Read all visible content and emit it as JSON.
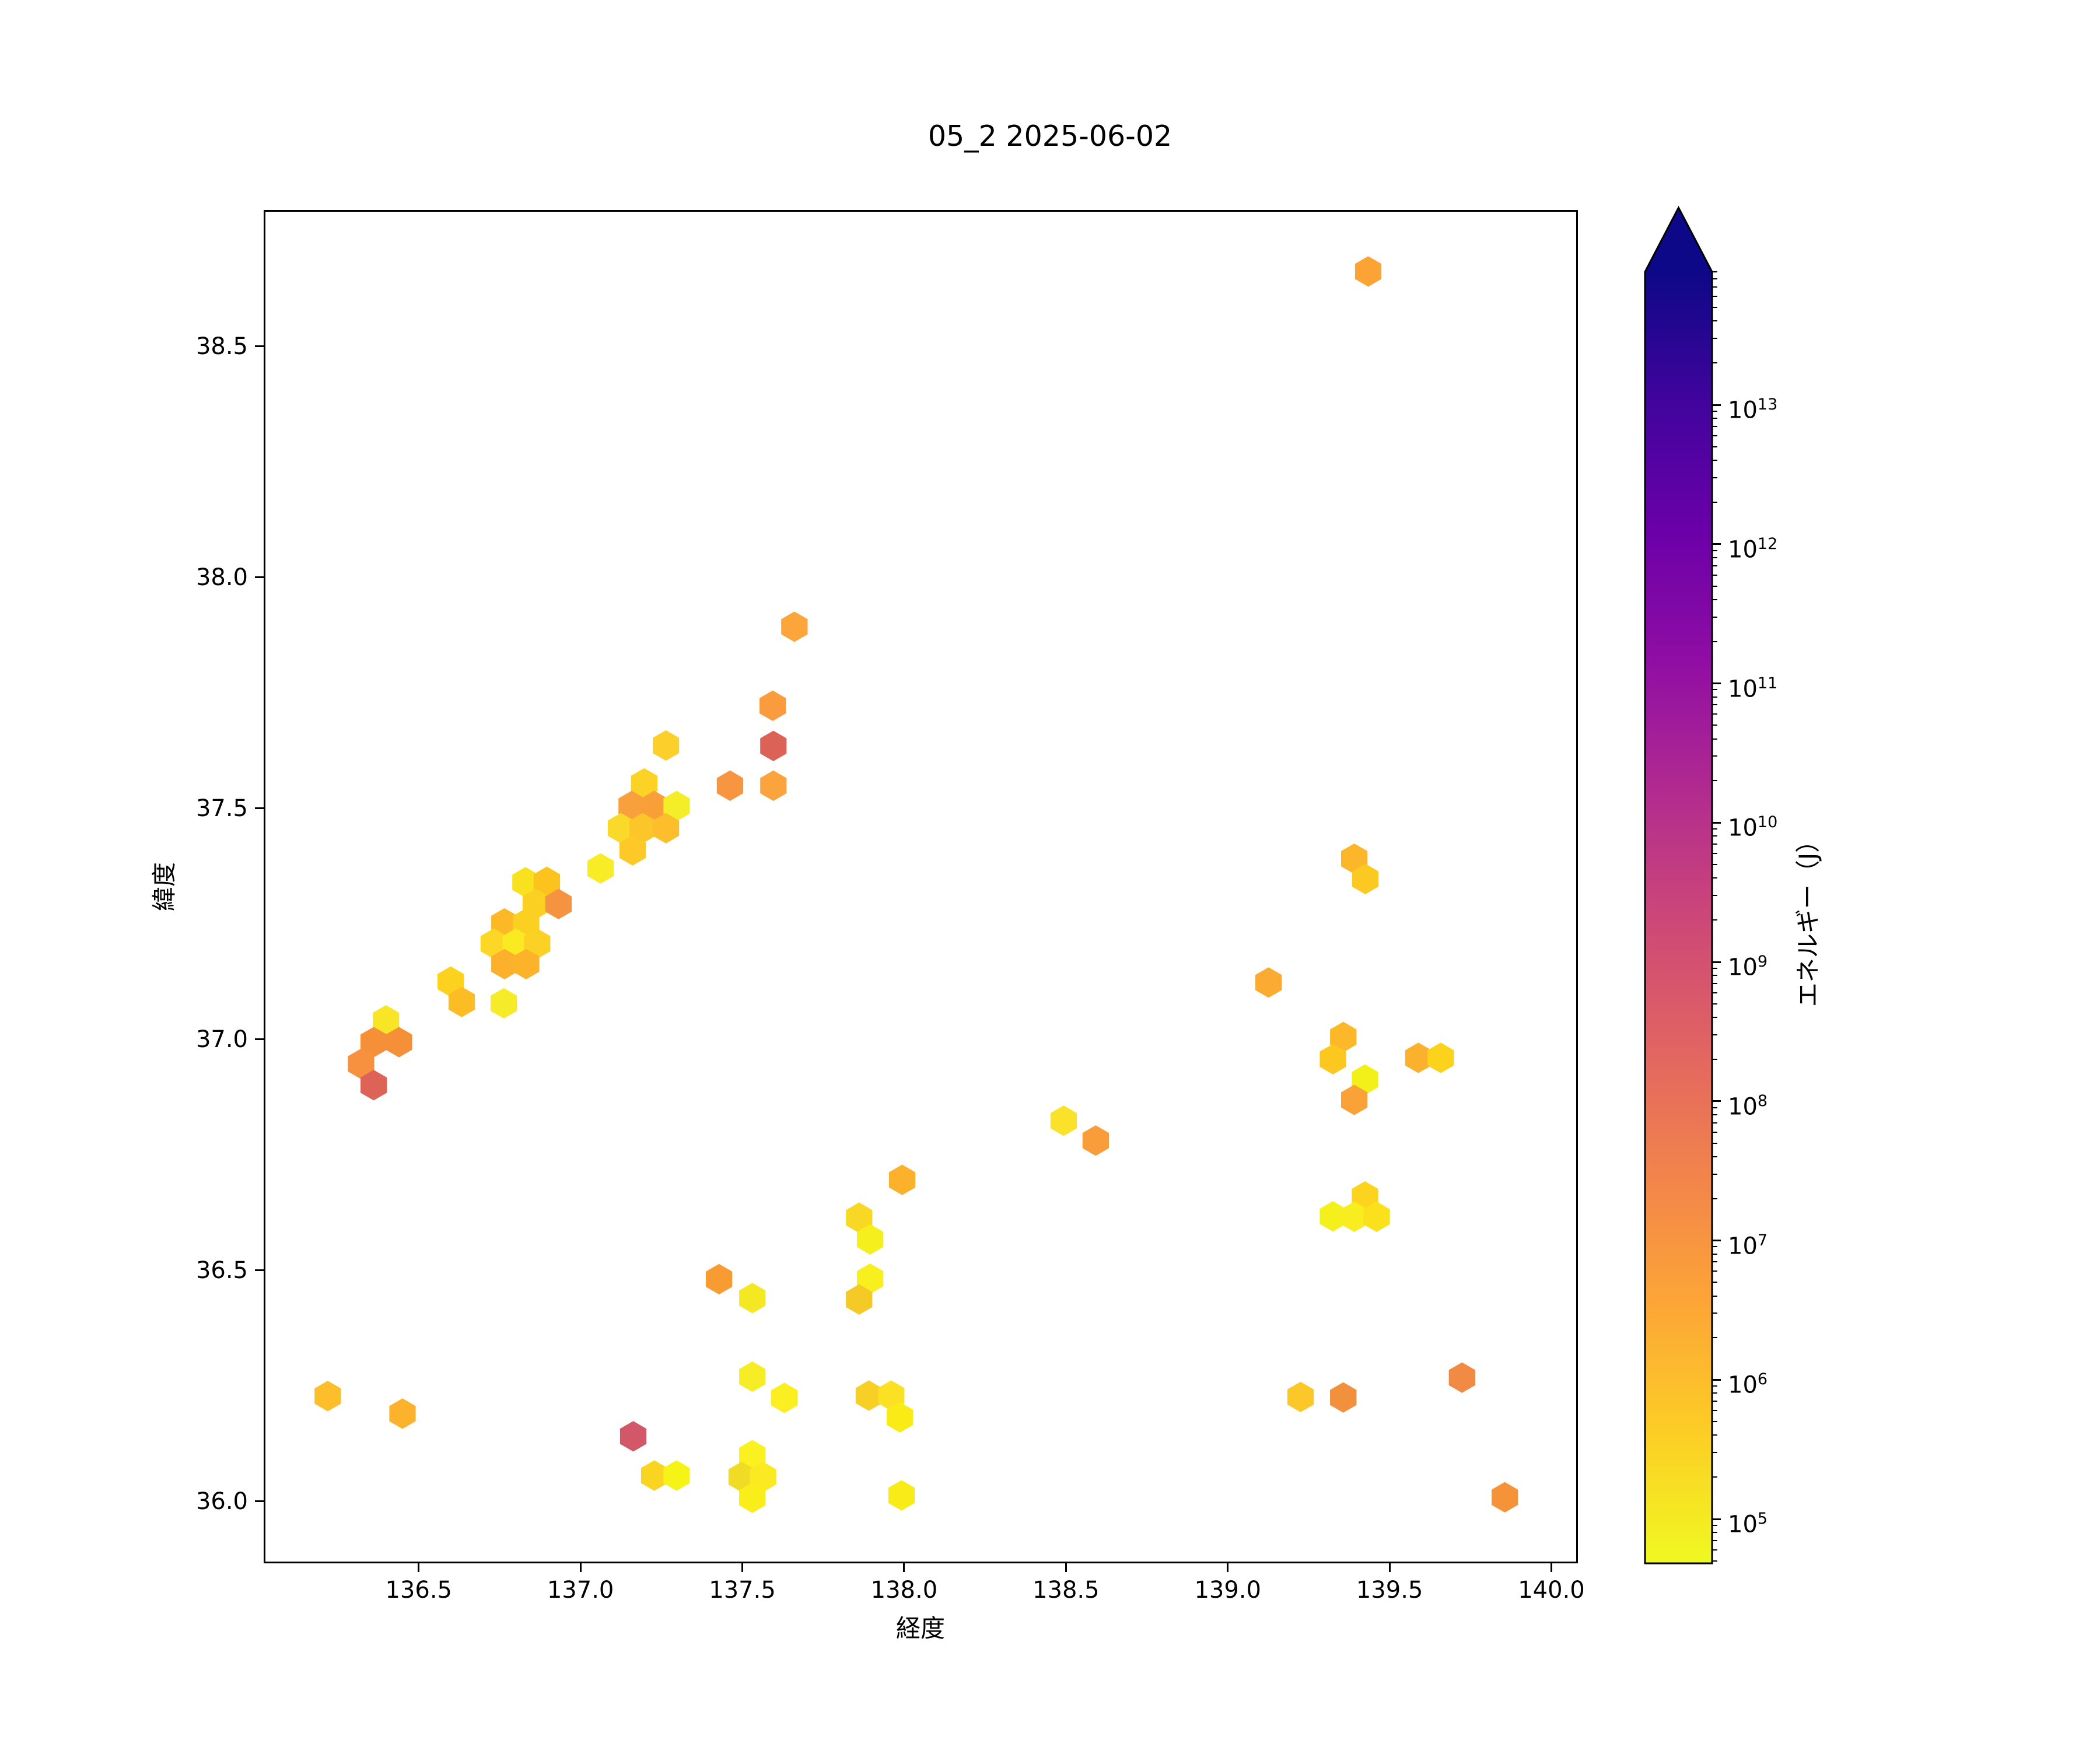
{
  "title": "05_2 2025-06-02",
  "plot": {
    "xlabel": "経度",
    "ylabel": "緯度",
    "x_tick_values": [
      136.5,
      137.0,
      137.5,
      138.0,
      138.5,
      139.0,
      139.5,
      140.0
    ],
    "x_tick_labels": [
      "136.5",
      "137.0",
      "137.5",
      "138.0",
      "138.5",
      "139.0",
      "139.5",
      "140.0"
    ],
    "y_tick_values": [
      38.5,
      38.0,
      37.5,
      37.0,
      36.5,
      36.0
    ],
    "y_tick_labels": [
      "38.5",
      "38.0",
      "37.5",
      "37.0",
      "36.5",
      "36.0"
    ]
  },
  "colorbar": {
    "label": "エネルギー（J）",
    "scale": "log",
    "extend": "max",
    "tick_exponents": [
      5,
      6,
      7,
      8,
      9,
      10,
      11,
      12,
      13
    ],
    "range_log10": [
      4.68,
      13.955
    ],
    "arrow_color": "#0d0887",
    "cmap_low_to_high": [
      "#f0f921",
      "#fcce25",
      "#fca636",
      "#f2844b",
      "#e16462",
      "#cc4778",
      "#b12a90",
      "#8f0da4",
      "#6a00a8",
      "#41049d",
      "#0d0887"
    ]
  },
  "chart_data": {
    "type": "hexbin",
    "title": "05_2 2025-06-02",
    "xlabel": "経度",
    "ylabel": "緯度",
    "colorbar_label": "エネルギー（J）",
    "xlim": [
      136.021,
      140.082
    ],
    "ylim": [
      35.866,
      38.795
    ],
    "grid": false,
    "hex_width_deg": 0.078,
    "points": [
      {
        "x": 139.434,
        "y": 38.662,
        "c": "#fba335"
      },
      {
        "x": 137.661,
        "y": 37.893,
        "c": "#fca53b"
      },
      {
        "x": 137.594,
        "y": 37.722,
        "c": "#fa9b3d"
      },
      {
        "x": 137.596,
        "y": 37.635,
        "c": "#dc6157"
      },
      {
        "x": 137.264,
        "y": 37.636,
        "c": "#fccf2b"
      },
      {
        "x": 137.462,
        "y": 37.549,
        "c": "#f89540"
      },
      {
        "x": 137.596,
        "y": 37.549,
        "c": "#fba33c"
      },
      {
        "x": 137.197,
        "y": 37.554,
        "c": "#fcd226"
      },
      {
        "x": 137.158,
        "y": 37.505,
        "c": "#f8a13c"
      },
      {
        "x": 137.228,
        "y": 37.505,
        "c": "#f99f38"
      },
      {
        "x": 137.297,
        "y": 37.505,
        "c": "#f4ee29"
      },
      {
        "x": 137.125,
        "y": 37.457,
        "c": "#fbd92b"
      },
      {
        "x": 137.192,
        "y": 37.457,
        "c": "#fcc62a"
      },
      {
        "x": 137.264,
        "y": 37.457,
        "c": "#fcbe2a"
      },
      {
        "x": 137.161,
        "y": 37.409,
        "c": "#fcc928"
      },
      {
        "x": 137.062,
        "y": 37.37,
        "c": "#f8ec26"
      },
      {
        "x": 136.83,
        "y": 37.34,
        "c": "#f8e21f"
      },
      {
        "x": 136.896,
        "y": 37.341,
        "c": "#fcc21e"
      },
      {
        "x": 136.862,
        "y": 37.293,
        "c": "#fcd022"
      },
      {
        "x": 136.932,
        "y": 37.293,
        "c": "#f59340"
      },
      {
        "x": 136.765,
        "y": 37.251,
        "c": "#fcb827"
      },
      {
        "x": 136.832,
        "y": 37.251,
        "c": "#fcd020"
      },
      {
        "x": 136.732,
        "y": 37.207,
        "c": "#fcd725"
      },
      {
        "x": 136.8,
        "y": 37.207,
        "c": "#f9ea21"
      },
      {
        "x": 136.866,
        "y": 37.207,
        "c": "#fcd125"
      },
      {
        "x": 136.765,
        "y": 37.163,
        "c": "#fcb02c"
      },
      {
        "x": 136.832,
        "y": 37.163,
        "c": "#fcb32a"
      },
      {
        "x": 136.599,
        "y": 37.125,
        "c": "#fcd21e"
      },
      {
        "x": 136.633,
        "y": 37.081,
        "c": "#fcbc23"
      },
      {
        "x": 136.763,
        "y": 37.078,
        "c": "#f6eb28"
      },
      {
        "x": 136.399,
        "y": 37.041,
        "c": "#f8e626"
      },
      {
        "x": 136.361,
        "y": 36.994,
        "c": "#f59038"
      },
      {
        "x": 136.439,
        "y": 36.994,
        "c": "#f59038"
      },
      {
        "x": 136.322,
        "y": 36.947,
        "c": "#f79140"
      },
      {
        "x": 136.361,
        "y": 36.901,
        "c": "#dd6357"
      },
      {
        "x": 137.428,
        "y": 36.481,
        "c": "#f89b32"
      },
      {
        "x": 137.531,
        "y": 36.44,
        "c": "#f4e822"
      },
      {
        "x": 137.994,
        "y": 36.696,
        "c": "#fcb12c"
      },
      {
        "x": 137.861,
        "y": 36.614,
        "c": "#f8d824"
      },
      {
        "x": 137.895,
        "y": 36.567,
        "c": "#f4ef1d"
      },
      {
        "x": 137.895,
        "y": 36.482,
        "c": "#f7ef1e"
      },
      {
        "x": 137.861,
        "y": 36.437,
        "c": "#f5c926"
      },
      {
        "x": 137.531,
        "y": 36.27,
        "c": "#f7ed26"
      },
      {
        "x": 137.63,
        "y": 36.224,
        "c": "#fbee21"
      },
      {
        "x": 137.891,
        "y": 36.229,
        "c": "#f8cf25"
      },
      {
        "x": 137.96,
        "y": 36.229,
        "c": "#fbe024"
      },
      {
        "x": 137.987,
        "y": 36.182,
        "c": "#f9ec16"
      },
      {
        "x": 137.163,
        "y": 36.141,
        "c": "#d25768"
      },
      {
        "x": 137.228,
        "y": 36.056,
        "c": "#f9d522"
      },
      {
        "x": 137.297,
        "y": 36.056,
        "c": "#f6f316"
      },
      {
        "x": 137.531,
        "y": 36.1,
        "c": "#fbf120"
      },
      {
        "x": 137.498,
        "y": 36.053,
        "c": "#f0dc24"
      },
      {
        "x": 137.564,
        "y": 36.053,
        "c": "#fbe921"
      },
      {
        "x": 137.531,
        "y": 36.008,
        "c": "#f9ee19"
      },
      {
        "x": 137.992,
        "y": 36.013,
        "c": "#f9ec16"
      },
      {
        "x": 138.493,
        "y": 36.824,
        "c": "#fbe22a"
      },
      {
        "x": 138.592,
        "y": 36.781,
        "c": "#f99d3b"
      },
      {
        "x": 139.126,
        "y": 37.123,
        "c": "#fbab32"
      },
      {
        "x": 139.391,
        "y": 37.391,
        "c": "#fcb62a"
      },
      {
        "x": 139.425,
        "y": 37.347,
        "c": "#fcc822"
      },
      {
        "x": 139.357,
        "y": 37.005,
        "c": "#fcb828"
      },
      {
        "x": 139.325,
        "y": 36.957,
        "c": "#fcc820"
      },
      {
        "x": 139.424,
        "y": 36.913,
        "c": "#f3f019"
      },
      {
        "x": 139.391,
        "y": 36.869,
        "c": "#faa237"
      },
      {
        "x": 139.589,
        "y": 36.96,
        "c": "#fbb12d"
      },
      {
        "x": 139.658,
        "y": 36.96,
        "c": "#fcd21c"
      },
      {
        "x": 139.424,
        "y": 36.66,
        "c": "#fcd31d"
      },
      {
        "x": 139.325,
        "y": 36.617,
        "c": "#f4f01c"
      },
      {
        "x": 139.391,
        "y": 36.616,
        "c": "#f8ed1e"
      },
      {
        "x": 139.46,
        "y": 36.616,
        "c": "#fbe11c"
      },
      {
        "x": 139.225,
        "y": 36.226,
        "c": "#fcc829"
      },
      {
        "x": 139.357,
        "y": 36.225,
        "c": "#f2913d"
      },
      {
        "x": 139.724,
        "y": 36.268,
        "c": "#f18a44"
      },
      {
        "x": 139.856,
        "y": 36.009,
        "c": "#f59338"
      },
      {
        "x": 136.219,
        "y": 36.228,
        "c": "#fcbe2b"
      },
      {
        "x": 136.45,
        "y": 36.19,
        "c": "#fcb22c"
      }
    ]
  }
}
